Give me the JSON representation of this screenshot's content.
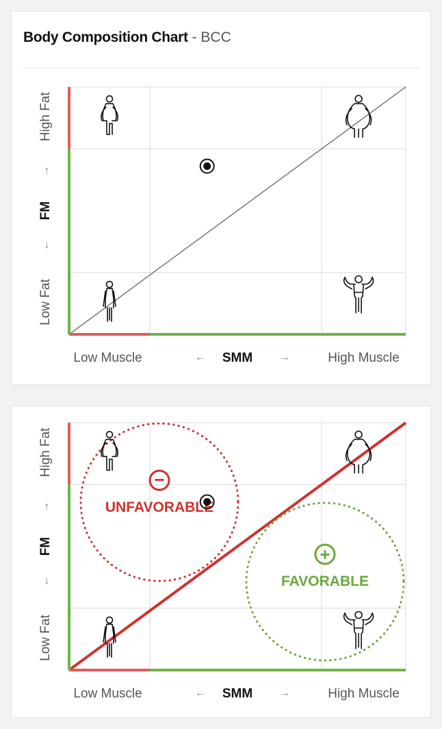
{
  "card_top": {
    "title_bold": "Body Composition Chart",
    "title_separator": " - ",
    "title_code": "BCC"
  },
  "axis_labels": {
    "y_high": "High Fat",
    "y_mid": "FM",
    "y_low": "Low Fat",
    "x_low": "Low Muscle",
    "x_mid": "SMM",
    "x_high": "High Muscle",
    "arrow_up": "→",
    "arrow_down": "←",
    "arrow_left": "←",
    "arrow_right": "→"
  },
  "zones": {
    "unfavorable": "UNFAVORABLE",
    "favorable": "FAVORABLE",
    "minus_sign": "−",
    "plus_sign": "+"
  },
  "colors": {
    "axis_red": "#e05c5c",
    "axis_green": "#6db542",
    "diag_gray": "#666666",
    "diag_red": "#d0312d",
    "unfav": "#d0312d",
    "fav": "#6aa83a",
    "grid": "#d8d8d8"
  },
  "icons": {
    "top_left": "overweight-figure-icon",
    "top_right": "obese-figure-icon",
    "bottom_left": "slim-figure-icon",
    "bottom_right": "muscular-figure-icon",
    "marker": "current-position-marker-icon"
  },
  "chart_data": [
    {
      "type": "scatter",
      "xlabel": "SMM",
      "ylabel": "FM",
      "xlim": [
        0,
        1
      ],
      "ylim": [
        0,
        1
      ],
      "x_ticks": [
        "Low Muscle",
        "High Muscle"
      ],
      "y_ticks": [
        "Low Fat",
        "High Fat"
      ],
      "x_grid": [
        0.24,
        0.75
      ],
      "y_grid": [
        0.25,
        0.75
      ],
      "diagonal": [
        [
          0,
          0
        ],
        [
          1,
          1
        ]
      ],
      "x_axis_segments": [
        {
          "from": 0,
          "to": 0.24,
          "status": "red"
        },
        {
          "from": 0.24,
          "to": 1,
          "status": "green"
        }
      ],
      "y_axis_segments": [
        {
          "from": 0,
          "to": 0.75,
          "status": "green"
        },
        {
          "from": 0.75,
          "to": 1,
          "status": "red"
        }
      ],
      "points": [
        {
          "x": 0.41,
          "y": 0.68
        }
      ],
      "grid": true
    },
    {
      "type": "scatter",
      "xlabel": "SMM",
      "ylabel": "FM",
      "xlim": [
        0,
        1
      ],
      "ylim": [
        0,
        1
      ],
      "x_ticks": [
        "Low Muscle",
        "High Muscle"
      ],
      "y_ticks": [
        "Low Fat",
        "High Fat"
      ],
      "x_grid": [
        0.24,
        0.75
      ],
      "y_grid": [
        0.25,
        0.75
      ],
      "diagonal": [
        [
          0,
          0
        ],
        [
          1,
          1
        ]
      ],
      "x_axis_segments": [
        {
          "from": 0,
          "to": 0.24,
          "status": "red"
        },
        {
          "from": 0.24,
          "to": 1,
          "status": "green"
        }
      ],
      "y_axis_segments": [
        {
          "from": 0,
          "to": 0.75,
          "status": "green"
        },
        {
          "from": 0.75,
          "to": 1,
          "status": "red"
        }
      ],
      "points": [
        {
          "x": 0.41,
          "y": 0.68
        }
      ],
      "annotations": [
        "UNFAVORABLE",
        "FAVORABLE"
      ],
      "grid": true
    }
  ]
}
